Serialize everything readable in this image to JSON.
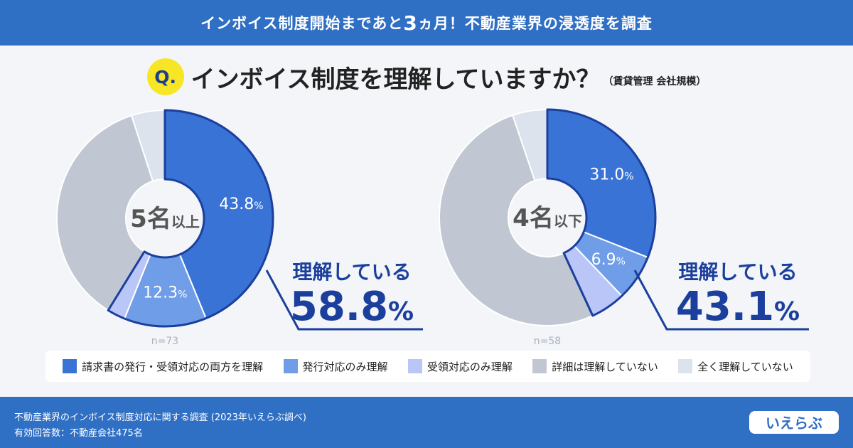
{
  "banner": {
    "pre": "インボイス制度開始まであと",
    "big": "3",
    "post": "ヵ月！不動産業界の浸透度を調査"
  },
  "question": {
    "badge": "Q.",
    "text": "インボイス制度を理解していますか？",
    "note": "（賃貸管理 会社規模）"
  },
  "colors": {
    "both": "#3a73d6",
    "hakko": "#6f9de8",
    "juryo": "#b9c6f7",
    "shousai": "#c0c7d2",
    "zenku": "#dde3ec",
    "accent": "#1b3f9c"
  },
  "chart_data": [
    {
      "type": "pie",
      "group_main": "5名",
      "group_sub": "以上",
      "n_label": "n=73",
      "categories": [
        "請求書の発行・受領対応の両方を理解",
        "発行対応のみ理解",
        "受領対応のみ理解",
        "詳細は理解していない",
        "全く理解していない"
      ],
      "values": [
        43.8,
        12.3,
        2.7,
        36.2,
        5.0
      ],
      "labels": [
        {
          "idx": 0,
          "num": "43.8",
          "pct": "%"
        },
        {
          "idx": 1,
          "num": "12.3",
          "pct": "%"
        }
      ],
      "callout": {
        "text": "理解している",
        "num": "58.8",
        "pct": "%"
      }
    },
    {
      "type": "pie",
      "group_main": "4名",
      "group_sub": "以下",
      "n_label": "n=58",
      "categories": [
        "請求書の発行・受領対応の両方を理解",
        "発行対応のみ理解",
        "受領対応のみ理解",
        "詳細は理解していない",
        "全く理解していない"
      ],
      "values": [
        31.0,
        6.9,
        5.2,
        51.7,
        5.2
      ],
      "labels": [
        {
          "idx": 0,
          "num": "31.0",
          "pct": "%"
        },
        {
          "idx": 1,
          "num": "6.9",
          "pct": "%"
        }
      ],
      "callout": {
        "text": "理解している",
        "num": "43.1",
        "pct": "%"
      }
    }
  ],
  "legend": [
    {
      "label": "請求書の発行・受領対応の両方を理解",
      "color": "#3a73d6"
    },
    {
      "label": "発行対応のみ理解",
      "color": "#6f9de8"
    },
    {
      "label": "受領対応のみ理解",
      "color": "#b9c6f7"
    },
    {
      "label": "詳細は理解していない",
      "color": "#c0c7d2"
    },
    {
      "label": "全く理解していない",
      "color": "#dde3ec"
    }
  ],
  "footer": {
    "line1": "不動産業界のインボイス制度対応に関する調査 (2023年いえらぶ調べ)",
    "line2": "有効回答数：不動産会社475名",
    "logo": "いえらぶ"
  }
}
